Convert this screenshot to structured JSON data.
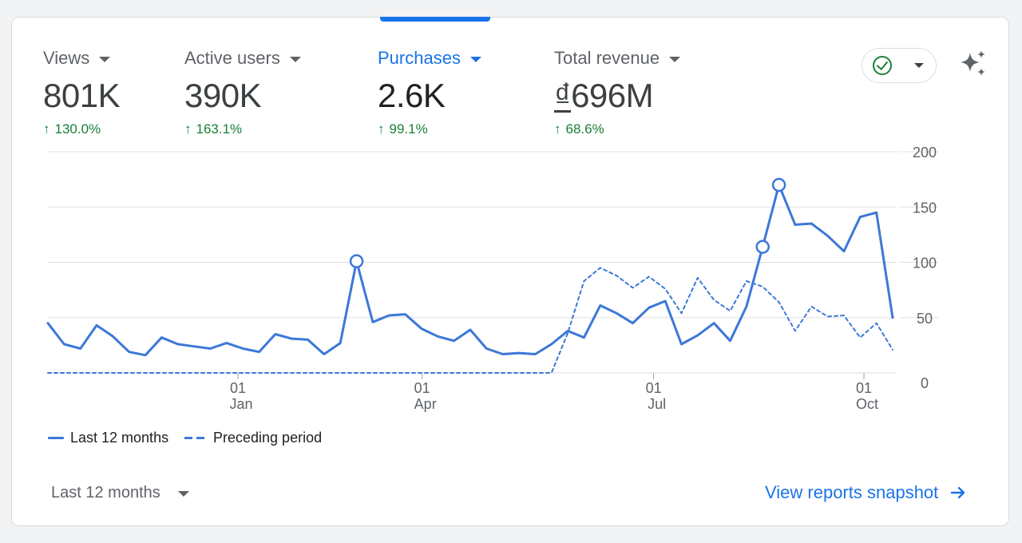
{
  "metrics": [
    {
      "label": "Views",
      "value": "801K",
      "delta": "130.0%"
    },
    {
      "label": "Active users",
      "value": "390K",
      "delta": "163.1%"
    },
    {
      "label": "Purchases",
      "value": "2.6K",
      "delta": "99.1%",
      "active": true
    },
    {
      "label": "Total revenue",
      "value_currency": "₫",
      "value": "696M",
      "delta": "68.6%"
    }
  ],
  "icons": {
    "delta_arrow": "arrow-up-icon",
    "status": "check-circle-icon",
    "insights": "sparkle-icon",
    "link_arrow": "arrow-right-icon"
  },
  "colors": {
    "accent": "#1a73e8",
    "series": "#3c78d8",
    "positive": "#188038",
    "grid": "#e0e0e0"
  },
  "legend": {
    "current": "Last 12 months",
    "previous": "Preceding period"
  },
  "footer": {
    "period_select": "Last 12 months",
    "view_link": "View reports snapshot"
  },
  "chart_data": {
    "type": "line",
    "x_ticks": [
      {
        "day": "01",
        "month": "Jan"
      },
      {
        "day": "01",
        "month": "Apr"
      },
      {
        "day": "01",
        "month": "Jul"
      },
      {
        "day": "01",
        "month": "Oct"
      }
    ],
    "y_ticks": [
      0,
      50,
      100,
      150,
      200
    ],
    "ylim": [
      0,
      200
    ],
    "grid": true,
    "legend_position": "bottom-left",
    "series": [
      {
        "name": "Last 12 months",
        "style": "solid",
        "values": [
          45,
          26,
          22,
          43,
          33,
          19,
          16,
          32,
          26,
          24,
          22,
          27,
          22,
          19,
          35,
          31,
          30,
          17,
          27,
          101,
          46,
          52,
          53,
          40,
          33,
          29,
          39,
          22,
          17,
          18,
          17,
          26,
          38,
          32,
          61,
          54,
          45,
          59,
          65,
          26,
          34,
          45,
          29,
          60,
          114,
          170,
          134,
          135,
          124,
          110,
          141,
          145,
          50
        ],
        "markers": [
          19,
          44,
          45
        ]
      },
      {
        "name": "Preceding period",
        "style": "dashed",
        "values": [
          0,
          0,
          0,
          0,
          0,
          0,
          0,
          0,
          0,
          0,
          0,
          0,
          0,
          0,
          0,
          0,
          0,
          0,
          0,
          0,
          0,
          0,
          0,
          0,
          0,
          0,
          0,
          0,
          0,
          0,
          0,
          0,
          36,
          83,
          95,
          88,
          77,
          87,
          76,
          54,
          86,
          66,
          56,
          83,
          78,
          64,
          38,
          60,
          51,
          52,
          32,
          45,
          21
        ]
      }
    ]
  }
}
